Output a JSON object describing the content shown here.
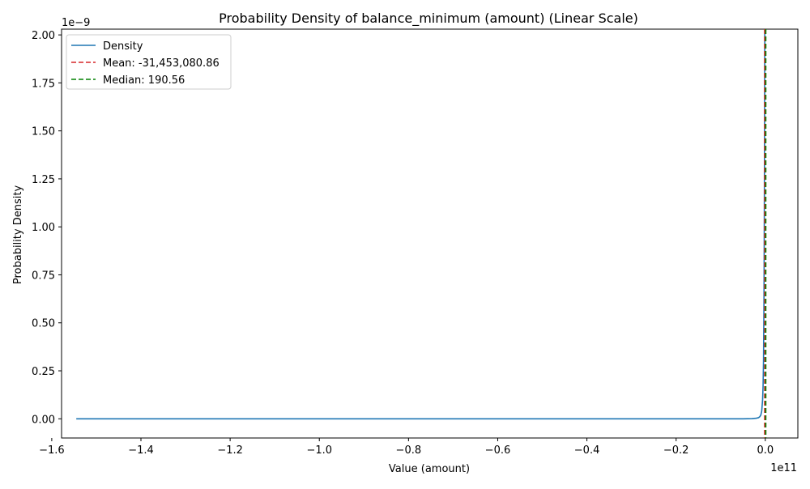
{
  "chart_data": {
    "type": "line",
    "title": "Probability Density of balance_minimum (amount) (Linear Scale)",
    "xlabel": "Value (amount)",
    "ylabel": "Probability Density",
    "x_offset_text": "1e11",
    "y_offset_text": "1e−9",
    "xlim": [
      -1.578,
      0.073
    ],
    "ylim": [
      -0.1,
      2.03
    ],
    "xticks": [
      -1.6,
      -1.4,
      -1.2,
      -1.0,
      -0.8,
      -0.6,
      -0.4,
      -0.2,
      0.0
    ],
    "xtick_labels": [
      "−1.6",
      "−1.4",
      "−1.2",
      "−1.0",
      "−0.8",
      "−0.6",
      "−0.4",
      "−0.2",
      "0.0"
    ],
    "yticks": [
      0.0,
      0.25,
      0.5,
      0.75,
      1.0,
      1.25,
      1.5,
      1.75,
      2.0
    ],
    "ytick_labels": [
      "0.00",
      "0.25",
      "0.50",
      "0.75",
      "1.00",
      "1.25",
      "1.50",
      "1.75",
      "2.00"
    ],
    "grid": false,
    "legend_position": "top-left",
    "series": [
      {
        "name": "Density",
        "color": "#1f77b4",
        "style": "solid",
        "x": [
          -1.545,
          -1.4,
          -1.2,
          -1.0,
          -0.8,
          -0.6,
          -0.4,
          -0.2,
          -0.05,
          -0.03,
          -0.02,
          -0.015,
          -0.012,
          -0.01,
          -0.008,
          -0.006,
          -0.005,
          -0.004,
          -0.003,
          -0.0025,
          -0.002,
          -0.0015,
          -0.001,
          -0.0005,
          0.0
        ],
        "y": [
          0.0,
          0.0,
          0.0,
          0.0,
          0.0,
          0.0,
          0.0,
          0.0,
          0.0,
          0.001,
          0.003,
          0.006,
          0.012,
          0.02,
          0.04,
          0.1,
          0.17,
          0.3,
          0.6,
          0.85,
          1.2,
          1.6,
          2.03,
          2.03,
          2.03
        ]
      }
    ],
    "vlines": [
      {
        "name": "Mean: -31,453,080.86",
        "x": -0.000315,
        "color": "#d62728",
        "style": "dashed"
      },
      {
        "name": "Median: 190.56",
        "x": 0.0,
        "color": "#008000",
        "style": "dashed"
      }
    ]
  }
}
